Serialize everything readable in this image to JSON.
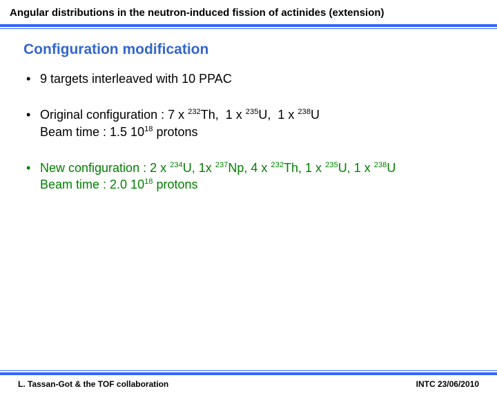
{
  "colors": {
    "rule_blue": "#3366ff",
    "section_blue": "#3366cc",
    "green": "#008000",
    "black": "#000000"
  },
  "header": {
    "title": "Angular distributions in the neutron-induced fission of actinides (extension)"
  },
  "section_title": "Configuration modification",
  "bullets": [
    {
      "color": "black",
      "html": "9 targets interleaved with 10 PPAC"
    },
    {
      "color": "black",
      "html": "Original configuration : 7 x <sup>232</sup>Th,&nbsp;&nbsp;1 x <sup>235</sup>U,&nbsp;&nbsp;1 x <sup>238</sup>U<br>Beam time : 1.5 10<sup>18</sup> protons"
    },
    {
      "color": "green",
      "html": "New configuration : 2 x <sup>234</sup>U, 1x <sup>237</sup>Np, 4 x <sup>232</sup>Th, 1 x <sup>235</sup>U, 1 x <sup>238</sup>U<br>Beam time : 2.0 10<sup>18</sup> protons"
    }
  ],
  "footer": {
    "left": "L. Tassan-Got & the TOF collaboration",
    "right": "INTC 23/06/2010"
  }
}
